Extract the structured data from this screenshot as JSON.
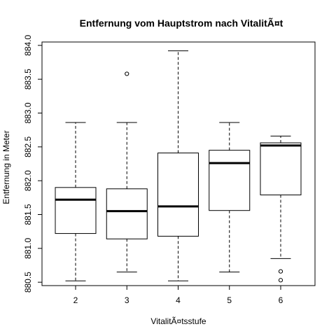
{
  "chart_data": {
    "type": "boxplot",
    "title": "Entfernung vom Hauptstrom nach VitalitÃ¤t",
    "xlabel": "VitalitÃ¤tsstufe",
    "ylabel": "Entfernung in Meter",
    "categories": [
      "2",
      "3",
      "4",
      "5",
      "6"
    ],
    "y_ticks": [
      "880.5",
      "881.0",
      "881.5",
      "882.0",
      "882.5",
      "883.0",
      "883.5",
      "884.0"
    ],
    "ylim": [
      880.45,
      884.05
    ],
    "boxes": [
      {
        "category": "2",
        "whisker_low": 880.52,
        "q1": 881.22,
        "median": 881.72,
        "q3": 881.9,
        "whisker_high": 882.86,
        "outliers": []
      },
      {
        "category": "3",
        "whisker_low": 880.65,
        "q1": 881.14,
        "median": 881.55,
        "q3": 881.88,
        "whisker_high": 882.86,
        "outliers": [
          883.58
        ]
      },
      {
        "category": "4",
        "whisker_low": 880.52,
        "q1": 881.18,
        "median": 881.62,
        "q3": 882.41,
        "whisker_high": 883.92,
        "outliers": []
      },
      {
        "category": "5",
        "whisker_low": 880.65,
        "q1": 881.56,
        "median": 882.26,
        "q3": 882.45,
        "whisker_high": 882.86,
        "outliers": []
      },
      {
        "category": "6",
        "whisker_low": 880.85,
        "q1": 881.79,
        "median": 882.52,
        "q3": 882.56,
        "whisker_high": 882.66,
        "outliers": [
          880.66,
          880.53
        ]
      }
    ]
  }
}
